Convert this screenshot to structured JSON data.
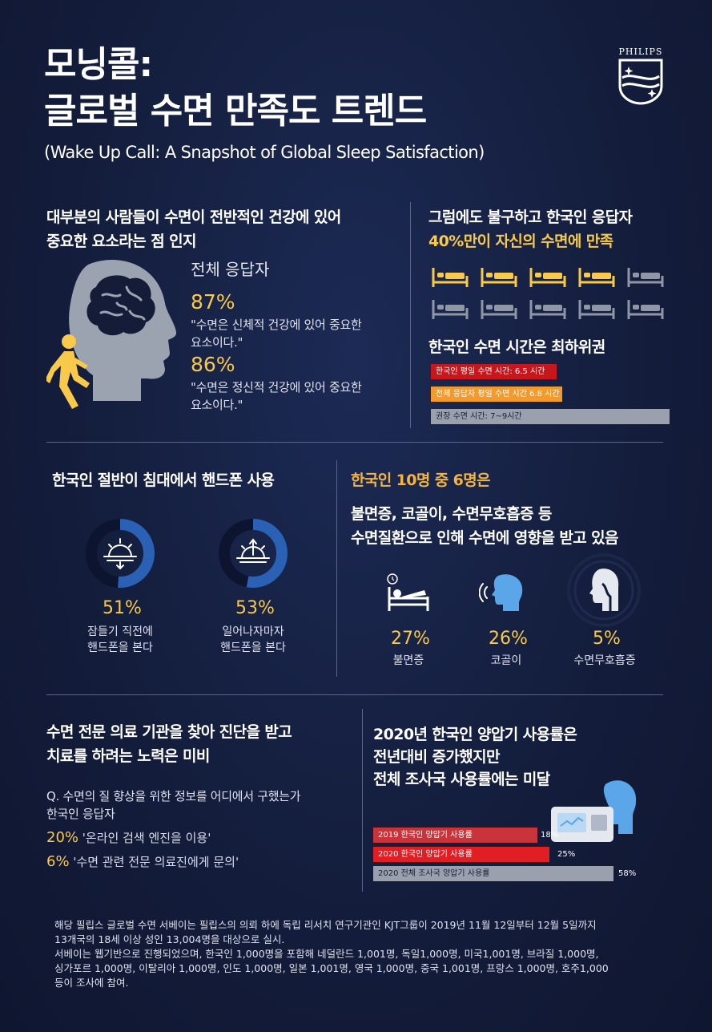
{
  "header": {
    "title_line1": "모닝콜:",
    "title_line2": "글로벌 수면 만족도 트렌드",
    "subtitle": "(Wake Up Call: A Snapshot of Global  Sleep Satisfaction)",
    "brand": "PHILIPS"
  },
  "section1": {
    "heading_line1": "대부분의 사람들이 수면이 전반적인 건강에 있어",
    "heading_line2": "중요한 요소라는 점 인지",
    "respondents_label": "전체 응답자",
    "stat1_pct": "87%",
    "stat1_text_line1": "\"수면은 신체적 건강에 있어 중요한",
    "stat1_text_line2": "요소이다.\"",
    "stat2_pct": "86%",
    "stat2_text_line1": "\"수면은 정신적 건강에 있어 중요한",
    "stat2_text_line2": "요소이다.\""
  },
  "section2": {
    "heading_line1": "그럼에도 불구하고 한국인 응답자",
    "heading_line2_highlight": "40%",
    "heading_line2_rest": "만이 자신의 수면에 만족",
    "satisfied_beds": 4,
    "total_beds": 10,
    "sleep_heading": "한국인 수면 시간은 최하위권",
    "bars": [
      {
        "label": "한국인 평일 수면 시간: 6.5 시간",
        "hours": 6.5,
        "color": "#c8161d"
      },
      {
        "label": "전체 응답자 평일 수면 시간 6.8 시간",
        "hours": 6.8,
        "color": "#f29a2e"
      },
      {
        "label": "권장 수면 시간: 7~9시간",
        "hours": 9,
        "color": "#9aa0ad"
      }
    ]
  },
  "section3": {
    "heading": "한국인 절반이 침대에서 핸드폰 사용",
    "items": [
      {
        "pct": "51%",
        "value": 51,
        "label_line1": "잠들기 직전에",
        "label_line2": "핸드폰을 본다"
      },
      {
        "pct": "53%",
        "value": 53,
        "label_line1": "일어나자마자",
        "label_line2": "핸드폰을 본다"
      }
    ]
  },
  "section4": {
    "heading_highlight": "한국인 10명 중 6명은",
    "heading_line2": "불면증, 코골이, 수면무호흡증 등",
    "heading_line3": "수면질환으로 인해 수면에 영향을 받고 있음",
    "items": [
      {
        "pct": "27%",
        "label": "불면증",
        "icon": "insomnia-bed-icon"
      },
      {
        "pct": "26%",
        "label": "코골이",
        "icon": "snoring-head-icon"
      },
      {
        "pct": "5%",
        "label": "수면무호흡증",
        "icon": "apnea-airway-icon"
      }
    ]
  },
  "section5": {
    "heading_line1": "수면 전문 의료 기관을 찾아 진단을 받고",
    "heading_line2": "치료를 하려는 노력은 미비",
    "question": "Q. 수면의 질 향상을 위한 정보를 어디에서 구했는가",
    "respondents": "한국인 응답자",
    "answers": [
      {
        "pct": "20%",
        "text": "'온라인 검색 엔진을 이용'"
      },
      {
        "pct": "6%",
        "text": "'수면 관련 전문 의료진에게 문의'"
      }
    ]
  },
  "section6": {
    "heading_line1": "2020년 한국인 양압기 사용률은",
    "heading_line2": "전년대비 증가했지만",
    "heading_line3": "전체 조사국 사용률에는 미달",
    "bars": [
      {
        "label": "2019 한국인 양압기 사용률",
        "value": 18,
        "value_text": "18%",
        "color": "#c9343a"
      },
      {
        "label": "2020 한국인 양압기 사용률",
        "value": 25,
        "value_text": "25%",
        "color": "#e01e24"
      },
      {
        "label": "2020 전체 조사국 양압기 사용률",
        "value": 58,
        "value_text": "58%",
        "color": "#9aa0ad"
      }
    ]
  },
  "footer": {
    "line1": "해당 필립스 글로벌 수면 서베이는 필립스의 의뢰 하에 독립 리서치 연구기관인 KJT그룹이 2019년 11월 12일부터 12월 5일까지",
    "line2": "13개국의 18세 이상 성인 13,004명을 대상으로 실시.",
    "line3": "서베이는 웹기반으로 진행되었으며, 한국인 1,000명을 포함해 네덜란드 1,001명, 독일1,000명, 미국1,001명, 브라질 1,000명,",
    "line4": "싱가포르 1,000명, 이탈리아 1,000명, 인도 1,000명, 일본 1,001명, 영국 1,000명, 중국 1,001명, 프랑스 1,000명, 호주1,000",
    "line5": "등이 조사에 참여."
  },
  "colors": {
    "background": "#131c3a",
    "accent_yellow": "#f8c94a",
    "accent_orange": "#f4b23f",
    "ring_blue": "#2b61b4",
    "ring_dark": "#0f1530"
  }
}
